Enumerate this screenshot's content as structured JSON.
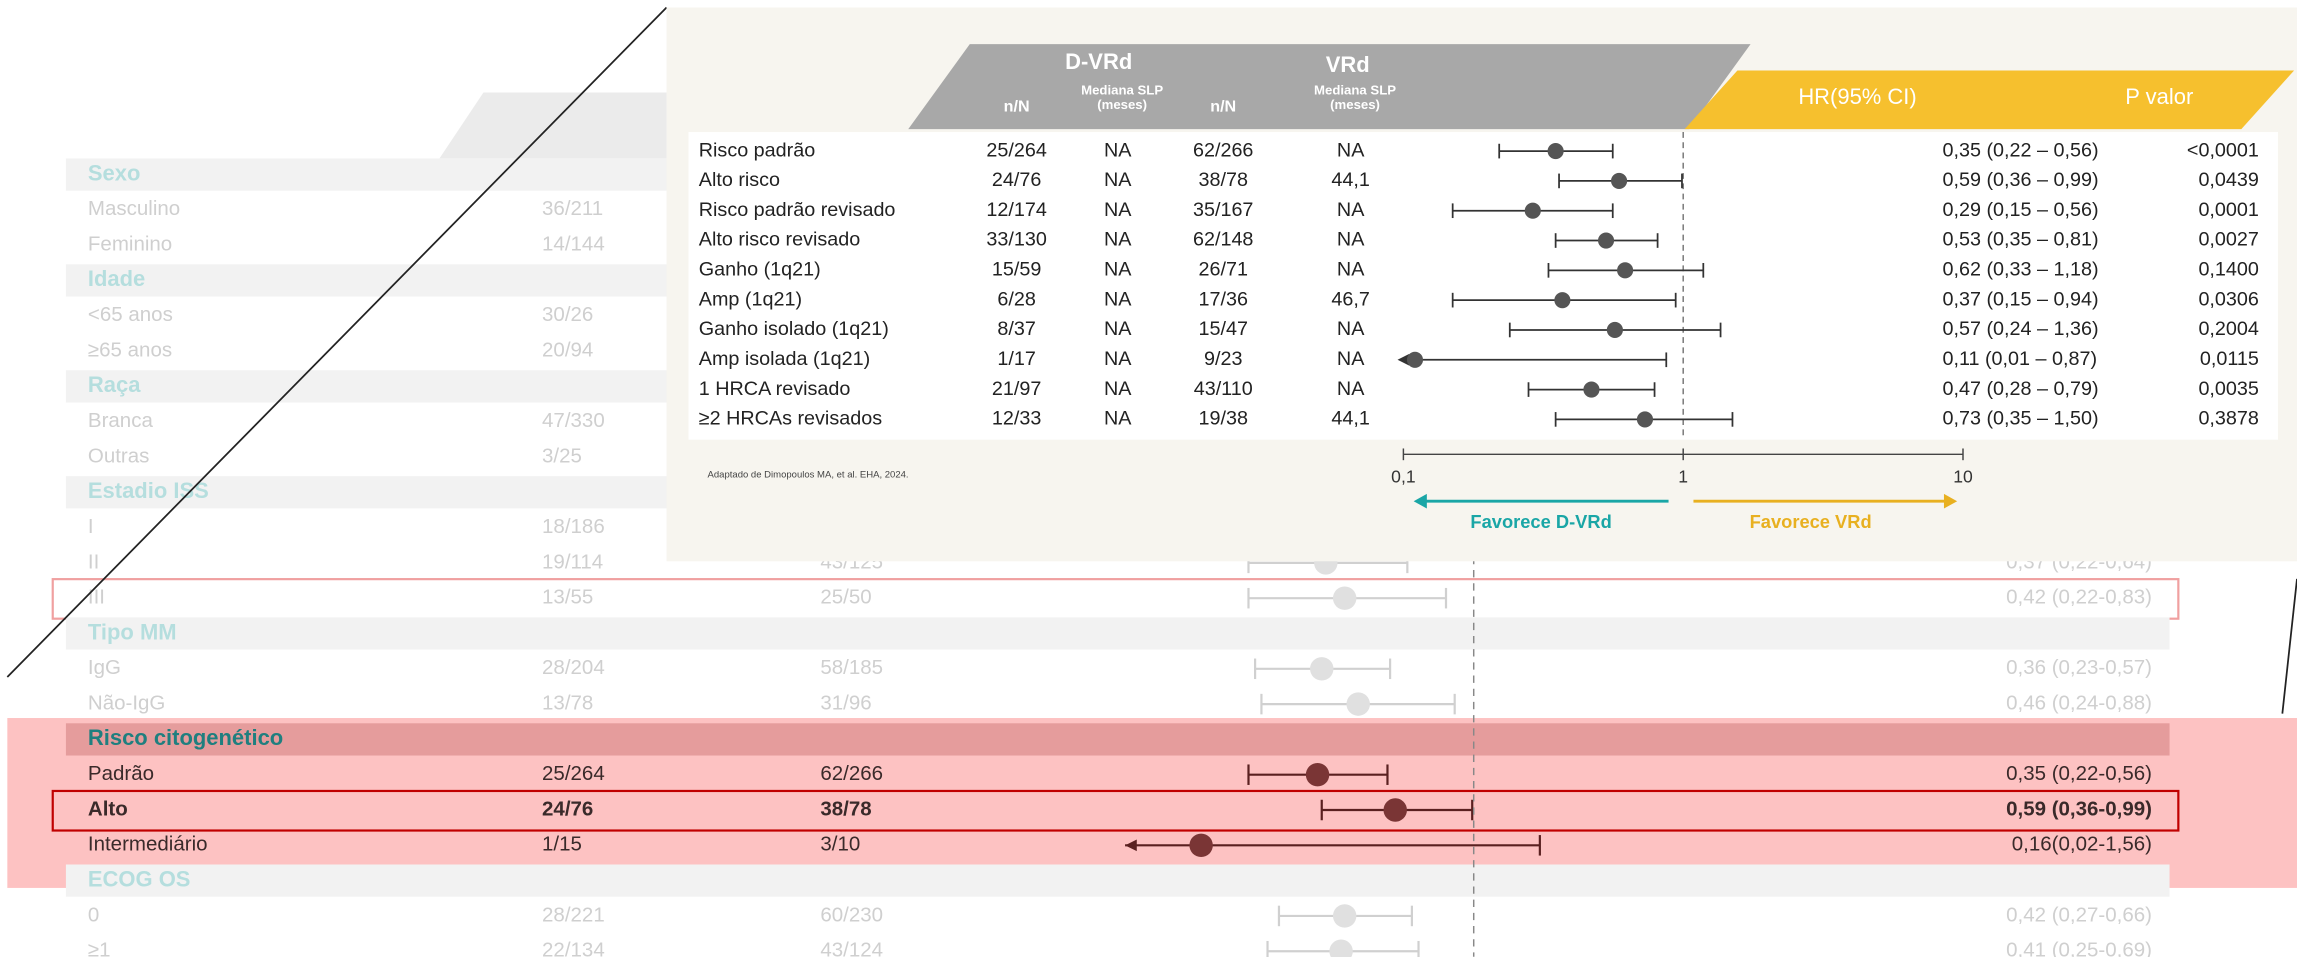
{
  "chart_data": {
    "type": "forest",
    "background": {
      "groups": [
        {
          "title": "Sexo",
          "rows": [
            {
              "label": "Masculino",
              "n1": "36/211"
            },
            {
              "label": "Feminino",
              "n1": "14/144"
            }
          ]
        },
        {
          "title": "Idade",
          "rows": [
            {
              "label": "<65 anos",
              "n1": "30/26"
            },
            {
              "label": "≥65 anos",
              "n1": "20/94"
            }
          ]
        },
        {
          "title": "Raça",
          "rows": [
            {
              "label": "Branca",
              "n1": "47/330"
            },
            {
              "label": "Outras",
              "n1": "3/25"
            }
          ]
        },
        {
          "title": "Estadio ISS",
          "rows": [
            {
              "label": "I",
              "n1": "18/186"
            },
            {
              "label": "II",
              "n1": "19/114",
              "n2": "43/125",
              "hr_label": "0,37 (0,22-0,64)",
              "hr": 0.37,
              "lo": 0.22,
              "hi": 0.64
            },
            {
              "label": "III",
              "n1": "13/55",
              "n2": "25/50",
              "hr_label": "0,42 (0,22-0,83)",
              "hr": 0.42,
              "lo": 0.22,
              "hi": 0.83,
              "outline": "#f0a0a0"
            }
          ]
        },
        {
          "title": "Tipo MM",
          "rows": [
            {
              "label": "IgG",
              "n1": "28/204",
              "n2": "58/185",
              "hr_label": "0,36 (0,23-0,57)",
              "hr": 0.36,
              "lo": 0.23,
              "hi": 0.57
            },
            {
              "label": "Não-IgG",
              "n1": "13/78",
              "n2": "31/96",
              "hr_label": "0,46 (0,24-0,88)",
              "hr": 0.46,
              "lo": 0.24,
              "hi": 0.88
            }
          ]
        },
        {
          "title": "Risco citogenético",
          "highlight": true,
          "rows": [
            {
              "label": "Padrão",
              "n1": "25/264",
              "n2": "62/266",
              "hr_label": "0,35 (0,22-0,56)",
              "hr": 0.35,
              "lo": 0.22,
              "hi": 0.56
            },
            {
              "label": "Alto",
              "n1": "24/76",
              "n2": "38/78",
              "hr_label": "0,59 (0,36-0,99)",
              "hr": 0.59,
              "lo": 0.36,
              "hi": 0.99,
              "outline": "#c00000"
            },
            {
              "label": "Intermediário",
              "n1": "1/15",
              "n2": "3/10",
              "hr_label": "0,16(0,02-1,56)",
              "hr": 0.16,
              "lo": 0.02,
              "hi": 1.56
            }
          ]
        },
        {
          "title": "ECOG OS",
          "rows": [
            {
              "label": "0",
              "n1": "28/221",
              "n2": "60/230",
              "hr_label": "0,42 (0,27-0,66)",
              "hr": 0.42,
              "lo": 0.27,
              "hi": 0.66
            },
            {
              "label": "≥1",
              "n1": "22/134",
              "n2": "43/124",
              "hr_label": "0,41 (0,25-0,69)",
              "hr": 0.41,
              "lo": 0.25,
              "hi": 0.69
            }
          ]
        }
      ]
    },
    "inset": {
      "arm1": "D-VRd",
      "arm2": "VRd",
      "columns": [
        {
          "lines": [
            "n/N"
          ]
        },
        {
          "lines": [
            "Mediana SLP",
            "(meses)"
          ]
        },
        {
          "lines": [
            "n/N"
          ]
        },
        {
          "lines": [
            "Mediana SLP",
            "(meses)"
          ]
        }
      ],
      "hr_header": "HR(95% CI)",
      "p_header": "P valor",
      "rows": [
        {
          "label": "Risco padrão",
          "n1": "25/264",
          "med1": "NA",
          "n2": "62/266",
          "med2": "NA",
          "hr_label": "0,35 (0,22 – 0,56)",
          "p": "<0,0001",
          "hr": 0.35,
          "lo": 0.22,
          "hi": 0.56
        },
        {
          "label": "Alto risco",
          "n1": "24/76",
          "med1": "NA",
          "n2": "38/78",
          "med2": "44,1",
          "hr_label": "0,59 (0,36 – 0,99)",
          "p": "0,0439",
          "hr": 0.59,
          "lo": 0.36,
          "hi": 0.99
        },
        {
          "label": "Risco padrão revisado",
          "n1": "12/174",
          "med1": "NA",
          "n2": "35/167",
          "med2": "NA",
          "hr_label": "0,29 (0,15 – 0,56)",
          "p": "0,0001",
          "hr": 0.29,
          "lo": 0.15,
          "hi": 0.56
        },
        {
          "label": "Alto risco revisado",
          "n1": "33/130",
          "med1": "NA",
          "n2": "62/148",
          "med2": "NA",
          "hr_label": "0,53 (0,35 – 0,81)",
          "p": "0,0027",
          "hr": 0.53,
          "lo": 0.35,
          "hi": 0.81
        },
        {
          "label": "Ganho (1q21)",
          "n1": "15/59",
          "med1": "NA",
          "n2": "26/71",
          "med2": "NA",
          "hr_label": "0,62 (0,33 – 1,18)",
          "p": "0,1400",
          "hr": 0.62,
          "lo": 0.33,
          "hi": 1.18
        },
        {
          "label": "Amp (1q21)",
          "n1": "6/28",
          "med1": "NA",
          "n2": "17/36",
          "med2": "46,7",
          "hr_label": "0,37 (0,15 – 0,94)",
          "p": "0,0306",
          "hr": 0.37,
          "lo": 0.15,
          "hi": 0.94
        },
        {
          "label": "Ganho isolado (1q21)",
          "n1": "8/37",
          "med1": "NA",
          "n2": "15/47",
          "med2": "NA",
          "hr_label": "0,57 (0,24 – 1,36)",
          "p": "0,2004",
          "hr": 0.57,
          "lo": 0.24,
          "hi": 1.36
        },
        {
          "label": "Amp isolada (1q21)",
          "n1": "1/17",
          "med1": "NA",
          "n2": "9/23",
          "med2": "NA",
          "hr_label": "0,11 (0,01 – 0,87)",
          "p": "0,0115",
          "hr": 0.11,
          "lo": 0.01,
          "hi": 0.87
        },
        {
          "label": "1 HRCA revisado",
          "n1": "21/97",
          "med1": "NA",
          "n2": "43/110",
          "med2": "NA",
          "hr_label": "0,47 (0,28 – 0,79)",
          "p": "0,0035",
          "hr": 0.47,
          "lo": 0.28,
          "hi": 0.79
        },
        {
          "label": "≥2 HRCAs revisados",
          "n1": "12/33",
          "med1": "NA",
          "n2": "19/38",
          "med2": "44,1",
          "hr_label": "0,73 (0,35 – 1,50)",
          "p": "0,3878",
          "hr": 0.73,
          "lo": 0.35,
          "hi": 1.5
        }
      ],
      "xlim": [
        0.1,
        10
      ],
      "xticks": [
        {
          "value": 0.1,
          "label": "0,1"
        },
        1,
        10
      ],
      "log": true,
      "ref_line": 1,
      "favors_left": "Favorece D-VRd",
      "favors_right": "Favorece VRd",
      "footnote": "Adaptado de Dimopoulos MA, et al. EHA, 2024."
    }
  }
}
